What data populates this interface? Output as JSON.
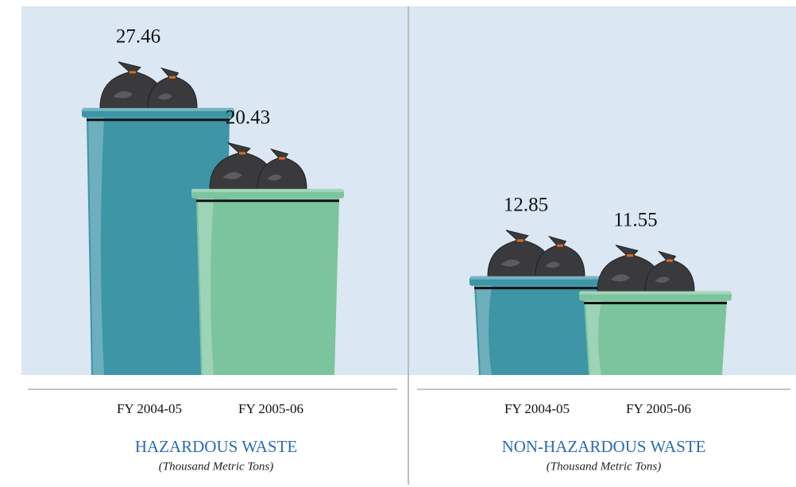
{
  "chart_data": [
    {
      "type": "bar",
      "title": "HAZARDOUS WASTE",
      "subtitle": "(Thousand Metric Tons)",
      "categories": [
        "FY 2004-05",
        "FY 2005-06"
      ],
      "values": [
        27.46,
        20.43
      ],
      "colors": [
        "#3d95a6",
        "#7cc49e"
      ]
    },
    {
      "type": "bar",
      "title": "NON-HAZARDOUS WASTE",
      "subtitle": "(Thousand Metric Tons)",
      "categories": [
        "FY 2004-05",
        "FY 2005-06"
      ],
      "values": [
        12.85,
        11.55
      ],
      "colors": [
        "#3d95a6",
        "#7cc49e"
      ]
    }
  ]
}
